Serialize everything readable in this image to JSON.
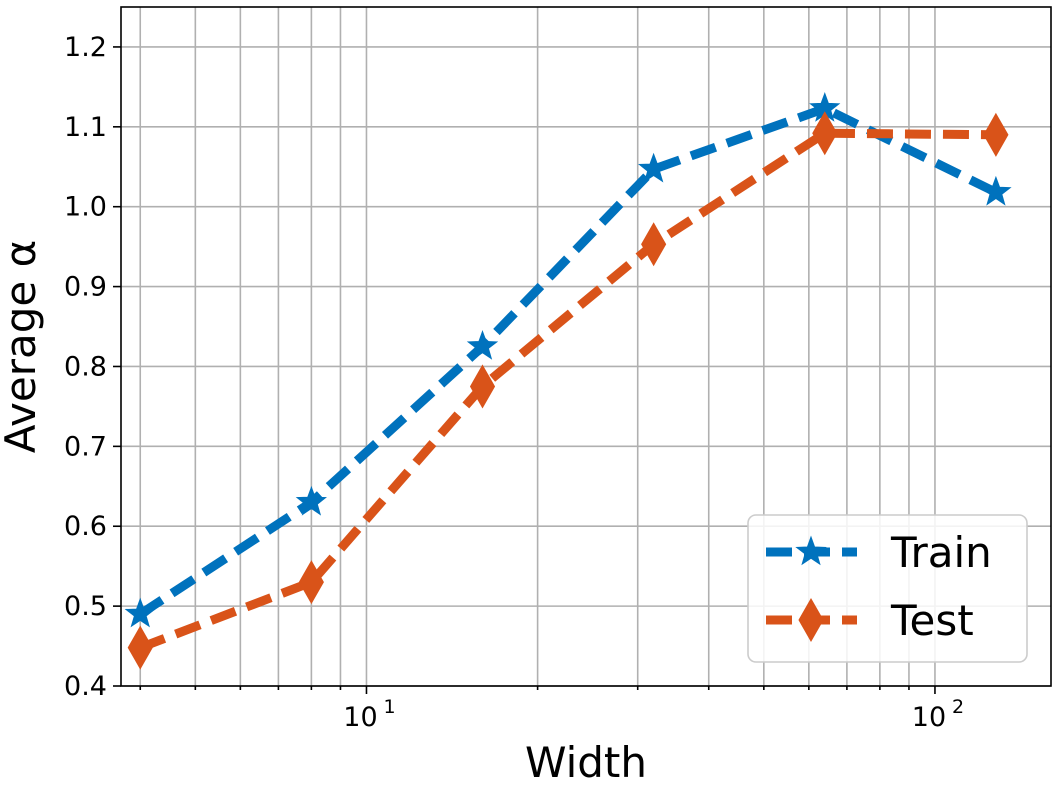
{
  "chart_data": {
    "type": "line",
    "title": "",
    "xlabel": "Width",
    "ylabel": "Average α",
    "xscale": "log",
    "xlim": [
      3.7,
      160
    ],
    "ylim": [
      0.4,
      1.25
    ],
    "x_ticks": [
      {
        "value": 10,
        "base": "10",
        "exp": "1"
      },
      {
        "value": 100,
        "base": "10",
        "exp": "2"
      }
    ],
    "y_ticks": [
      0.4,
      0.5,
      0.6,
      0.7,
      0.8,
      0.9,
      1.0,
      1.1,
      1.2
    ],
    "y_tick_labels": [
      "0.4",
      "0.5",
      "0.6",
      "0.7",
      "0.8",
      "0.9",
      "1.0",
      "1.1",
      "1.2"
    ],
    "grid": true,
    "legend_position": "lower-right",
    "series": [
      {
        "name": "Train",
        "color": "#0072bd",
        "marker": "star",
        "line_style": "dashed",
        "x": [
          4,
          8,
          16,
          32,
          64,
          128
        ],
        "y": [
          0.49,
          0.63,
          0.825,
          1.047,
          1.123,
          1.018
        ]
      },
      {
        "name": "Test",
        "color": "#d95319",
        "marker": "diamond",
        "line_style": "dashed",
        "x": [
          4,
          8,
          16,
          32,
          64,
          128
        ],
        "y": [
          0.448,
          0.53,
          0.775,
          0.953,
          1.092,
          1.09
        ]
      }
    ]
  }
}
